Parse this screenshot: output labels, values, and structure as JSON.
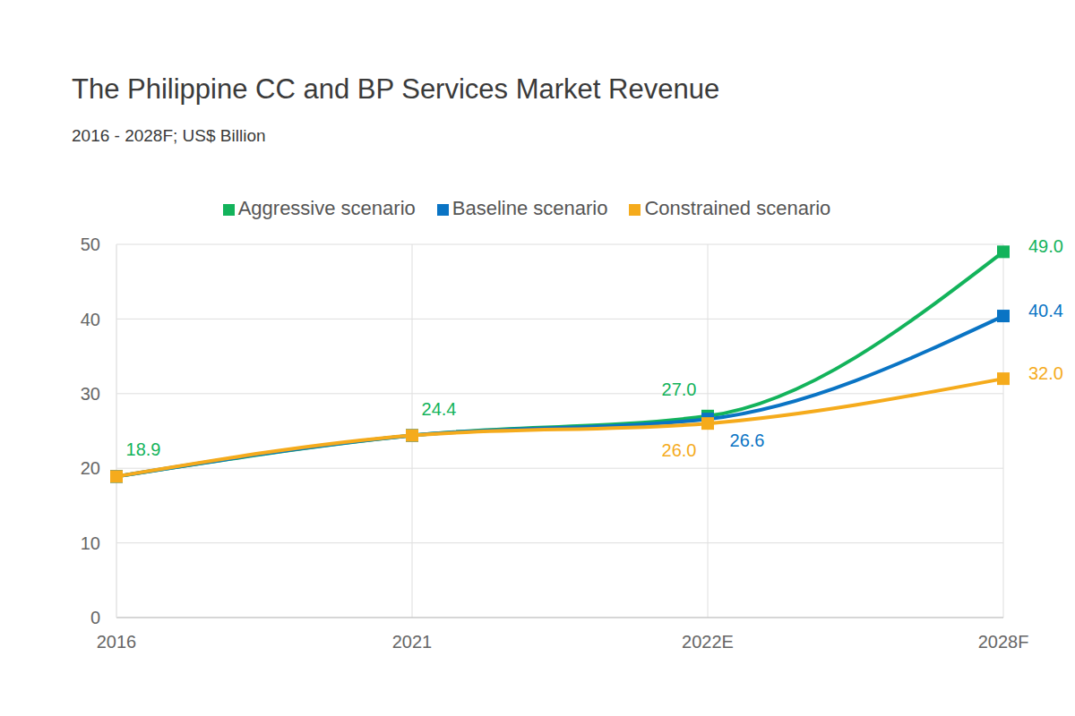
{
  "chart_data": {
    "type": "line",
    "title": "The Philippine CC and BP Services Market Revenue",
    "subtitle": "2016 - 2028F; US$ Billion",
    "categories": [
      "2016",
      "2021",
      "2022E",
      "2028F"
    ],
    "series": [
      {
        "name": "Aggressive scenario",
        "color": "#13b35b",
        "marker": "square",
        "values": [
          18.9,
          24.4,
          27.0,
          49.0
        ],
        "value_labels": [
          "18.9",
          "24.4",
          "27.0",
          "49.0"
        ]
      },
      {
        "name": "Baseline scenario",
        "color": "#0a74c4",
        "marker": "square",
        "values": [
          18.9,
          24.4,
          26.6,
          40.4
        ],
        "value_labels": [
          null,
          null,
          "26.6",
          "40.4"
        ]
      },
      {
        "name": "Constrained scenario",
        "color": "#f5ab1c",
        "marker": "square",
        "values": [
          18.9,
          24.4,
          26.0,
          32.0
        ],
        "value_labels": [
          null,
          null,
          "26.0",
          "32.0"
        ]
      }
    ],
    "ylim": [
      0,
      50
    ],
    "yticks": [
      0,
      10,
      20,
      30,
      40,
      50
    ],
    "grid": true,
    "legend": "top",
    "data_labels": true
  }
}
